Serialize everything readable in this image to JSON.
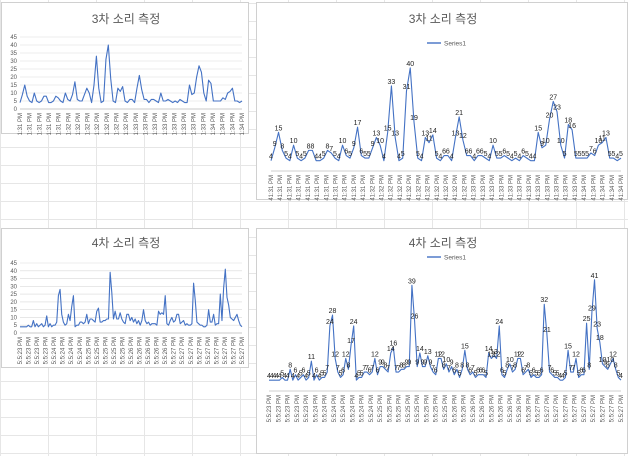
{
  "chart_data": [
    {
      "id": "c1",
      "type": "line",
      "title": "3차 소리 측정",
      "ylim": [
        0,
        45
      ],
      "yticks": [
        0,
        5,
        10,
        15,
        20,
        25,
        30,
        35,
        40,
        45
      ],
      "grid": true,
      "data_labels": false,
      "legend": "none",
      "line_color": "#4472c4",
      "x_labels": [
        "5:41:31 PM",
        "5:41:31 PM",
        "5:41:31 PM",
        "5:41:31 PM",
        "5:41:31 PM",
        "5:41:32 PM",
        "5:41:32 PM",
        "5:41:32 PM",
        "5:41:32 PM",
        "5:41:32 PM",
        "5:41:32 PM",
        "5:41:32 PM",
        "5:41:33 PM",
        "5:41:33 PM",
        "5:41:33 PM",
        "5:41:33 PM",
        "5:41:33 PM",
        "5:41:33 PM",
        "5:41:33 PM",
        "5:41:33 PM",
        "5:41:34 PM",
        "5:41:34 PM",
        "5:41:34 PM",
        "5:41:34 PM"
      ],
      "values": [
        4,
        9,
        15,
        8,
        5,
        4,
        10,
        5,
        4,
        5,
        8,
        8,
        4,
        4,
        5,
        8,
        7,
        5,
        4,
        10,
        6,
        5,
        9,
        17,
        6,
        5,
        5,
        9,
        13,
        10,
        4,
        15,
        33,
        13,
        4,
        5,
        31,
        40,
        19,
        5,
        4,
        13,
        11,
        14,
        5,
        4,
        6,
        6,
        4,
        13,
        21,
        12,
        6,
        6,
        4,
        6,
        6,
        5,
        4,
        10,
        5,
        5,
        6,
        5,
        4,
        5,
        4,
        6,
        5,
        4,
        4,
        15,
        9,
        10,
        20,
        27,
        23,
        10,
        5,
        18,
        16,
        5,
        5,
        5,
        5,
        7,
        6,
        10,
        11,
        13,
        5,
        5,
        4,
        5
      ]
    },
    {
      "id": "c2",
      "type": "line",
      "title": "3차 소리 측정",
      "ylim": [
        0,
        45
      ],
      "grid": false,
      "data_labels": true,
      "legend": "top-left",
      "legend_entry": "Series1",
      "line_color": "#4472c4",
      "x_labels": [
        "5:41:31 PM",
        "5:41:31 PM",
        "5:41:31 PM",
        "5:41:31 PM",
        "5:41:31 PM",
        "5:41:31 PM",
        "5:41:31 PM",
        "5:41:31 PM",
        "5:41:31 PM",
        "5:41:31 PM",
        "5:41:31 PM",
        "5:41:32 PM",
        "5:41:32 PM",
        "5:41:32 PM",
        "5:41:32 PM",
        "5:41:32 PM",
        "5:41:32 PM",
        "5:41:32 PM",
        "5:41:32 PM",
        "5:41:32 PM",
        "5:41:32 PM",
        "5:41:32 PM",
        "5:41:33 PM",
        "5:41:33 PM",
        "5:41:33 PM",
        "5:41:33 PM",
        "5:41:33 PM",
        "5:41:33 PM",
        "5:41:33 PM",
        "5:41:33 PM",
        "5:41:33 PM",
        "5:41:33 PM",
        "5:41:33 PM",
        "5:41:33 PM",
        "5:41:34 PM",
        "5:41:34 PM",
        "5:41:34 PM",
        "5:41:34 PM",
        "5:41:34 PM"
      ],
      "values": [
        4,
        9,
        15,
        8,
        5,
        4,
        10,
        5,
        4,
        5,
        8,
        8,
        4,
        4,
        5,
        8,
        7,
        5,
        4,
        10,
        6,
        5,
        9,
        17,
        6,
        5,
        5,
        9,
        13,
        10,
        4,
        15,
        33,
        13,
        4,
        5,
        31,
        40,
        19,
        5,
        4,
        13,
        11,
        14,
        5,
        4,
        6,
        6,
        4,
        13,
        21,
        12,
        6,
        6,
        4,
        6,
        6,
        5,
        4,
        10,
        5,
        5,
        6,
        5,
        4,
        5,
        4,
        6,
        5,
        4,
        4,
        15,
        9,
        10,
        20,
        27,
        23,
        10,
        5,
        18,
        16,
        5,
        5,
        5,
        5,
        7,
        6,
        10,
        11,
        13,
        5,
        5,
        4,
        5
      ]
    },
    {
      "id": "c3",
      "type": "line",
      "title": "4차 소리 측정",
      "ylim": [
        0,
        45
      ],
      "yticks": [
        0,
        5,
        10,
        15,
        20,
        25,
        30,
        35,
        40,
        45
      ],
      "grid": true,
      "data_labels": false,
      "legend": "none",
      "line_color": "#4472c4",
      "x_labels": [
        "5:5:23 PM",
        "5:5:23 PM",
        "5:5:23 PM",
        "5:5:23 PM",
        "5:5:24 PM",
        "5:5:24 PM",
        "5:5:24 PM",
        "5:5:24 PM",
        "5:5:25 PM",
        "5:5:25 PM",
        "5:5:25 PM",
        "5:5:25 PM",
        "5:5:25 PM",
        "5:5:26 PM",
        "5:5:26 PM",
        "5:5:26 PM",
        "5:5:26 PM",
        "5:5:26 PM",
        "5:5:27 PM",
        "5:5:27 PM",
        "5:5:27 PM",
        "5:5:27 PM",
        "5:5:27 PM",
        "5:5:27 PM",
        "5:5:27 PM",
        "5:5:27 PM",
        "5:5:27 PM"
      ],
      "values": [
        4,
        4,
        4,
        4,
        4,
        5,
        4,
        4,
        8,
        4,
        6,
        4,
        5,
        6,
        4,
        5,
        11,
        4,
        6,
        4,
        5,
        5,
        7,
        24,
        28,
        12,
        7,
        5,
        6,
        12,
        8,
        17,
        24,
        4,
        5,
        5,
        7,
        7,
        6,
        7,
        12,
        6,
        9,
        9,
        8,
        7,
        14,
        16,
        7,
        7,
        8,
        8,
        9,
        9,
        39,
        26,
        9,
        14,
        9,
        9,
        13,
        9,
        7,
        6,
        12,
        12,
        8,
        10,
        7,
        9,
        6,
        8,
        5,
        8,
        15,
        8,
        6,
        7,
        5,
        6,
        6,
        6,
        5,
        14,
        12,
        13,
        12,
        24,
        6,
        5,
        8,
        10,
        7,
        8,
        12,
        12,
        6,
        7,
        8,
        5,
        6,
        5,
        5,
        6,
        32,
        21,
        7,
        6,
        5,
        5,
        4,
        4,
        5,
        15,
        7,
        7,
        12,
        5,
        6,
        6,
        25,
        8,
        29,
        41,
        23,
        18,
        10,
        9,
        8,
        10,
        12,
        8,
        5,
        4
      ]
    },
    {
      "id": "c4",
      "type": "line",
      "title": "4차 소리 측정",
      "ylim": [
        0,
        45
      ],
      "grid": false,
      "data_labels": true,
      "legend": "top-left",
      "legend_entry": "Series1",
      "line_color": "#4472c4",
      "x_labels": [
        "5:5:23 PM",
        "5:5:23 PM",
        "5:5:23 PM",
        "5:5:23 PM",
        "5:5:23 PM",
        "5:5:24 PM",
        "5:5:24 PM",
        "5:5:24 PM",
        "5:5:24 PM",
        "5:5:24 PM",
        "5:5:24 PM",
        "5:5:24 PM",
        "5:5:25 PM",
        "5:5:25 PM",
        "5:5:25 PM",
        "5:5:25 PM",
        "5:5:25 PM",
        "5:5:25 PM",
        "5:5:25 PM",
        "5:5:25 PM",
        "5:5:26 PM",
        "5:5:26 PM",
        "5:5:26 PM",
        "5:5:26 PM",
        "5:5:26 PM",
        "5:5:26 PM",
        "5:5:26 PM",
        "5:5:26 PM",
        "5:5:26 PM",
        "5:5:27 PM",
        "5:5:27 PM",
        "5:5:27 PM",
        "5:5:27 PM",
        "5:5:27 PM",
        "5:5:27 PM",
        "5:5:27 PM",
        "5:5:27 PM",
        "5:5:27 PM",
        "5:5:27 PM"
      ],
      "values": [
        4,
        4,
        4,
        4,
        4,
        5,
        4,
        4,
        8,
        4,
        6,
        4,
        5,
        6,
        4,
        5,
        11,
        4,
        6,
        4,
        5,
        5,
        7,
        24,
        28,
        12,
        7,
        5,
        6,
        12,
        8,
        17,
        24,
        4,
        5,
        5,
        7,
        7,
        6,
        7,
        12,
        6,
        9,
        9,
        8,
        7,
        14,
        16,
        7,
        7,
        8,
        8,
        9,
        9,
        39,
        26,
        9,
        14,
        9,
        9,
        13,
        9,
        7,
        6,
        12,
        12,
        8,
        10,
        7,
        9,
        6,
        8,
        5,
        8,
        15,
        8,
        6,
        7,
        5,
        6,
        6,
        6,
        5,
        14,
        12,
        13,
        12,
        24,
        6,
        5,
        8,
        10,
        7,
        8,
        12,
        12,
        6,
        7,
        8,
        5,
        6,
        5,
        5,
        6,
        32,
        21,
        7,
        6,
        5,
        5,
        4,
        4,
        5,
        15,
        7,
        7,
        12,
        5,
        6,
        6,
        25,
        8,
        29,
        41,
        23,
        18,
        10,
        9,
        8,
        10,
        12,
        8,
        5,
        4
      ]
    }
  ]
}
